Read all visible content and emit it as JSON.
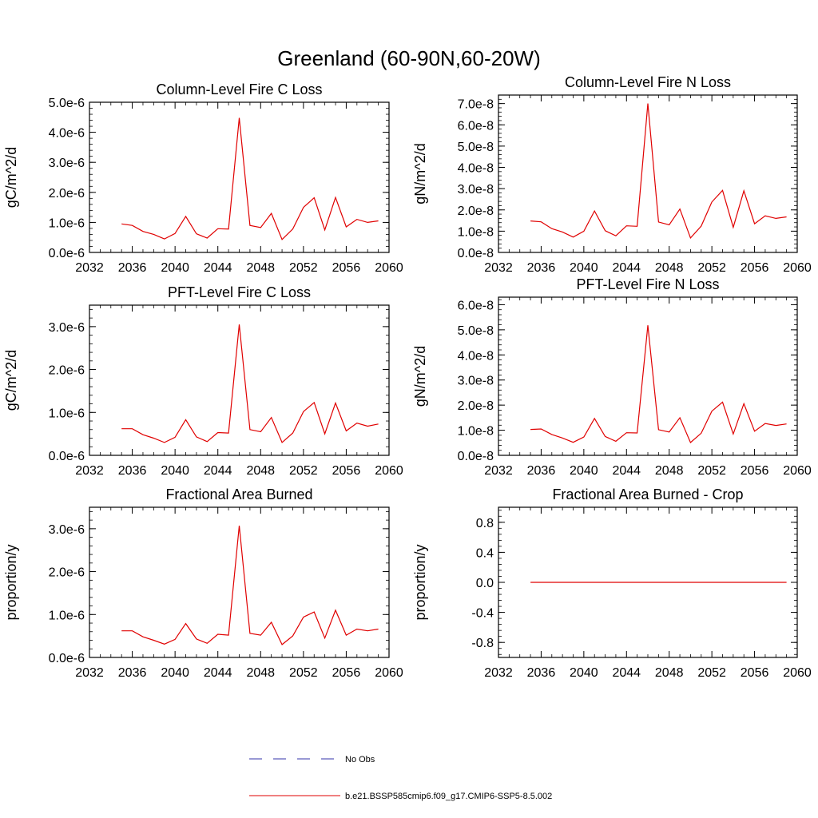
{
  "main_title": "Greenland (60-90N,60-20W)",
  "legend": {
    "entries": [
      {
        "label": "No Obs",
        "color": "#3333aa",
        "dash": true
      },
      {
        "label": "b.e21.BSSP585cmip6.f09_g17.CMIP6-SSP5-8.5.002",
        "color": "#e00000",
        "dash": false
      }
    ]
  },
  "chart_data": [
    {
      "type": "line",
      "title": "Column-Level Fire C Loss",
      "ylabel": "gC/m^2/d",
      "xlim": [
        2032,
        2060
      ],
      "ylim": [
        0,
        5e-06
      ],
      "x_ticks": [
        2032,
        2036,
        2040,
        2044,
        2048,
        2052,
        2056,
        2060
      ],
      "x_tick_labels": [
        "2032",
        "2036",
        "2040",
        "2044",
        "2048",
        "2052",
        "2056",
        "2060"
      ],
      "y_ticks": [
        0,
        1e-06,
        2e-06,
        3e-06,
        4e-06,
        5e-06
      ],
      "y_tick_labels": [
        "0.0e-6",
        "1.0e-6",
        "2.0e-6",
        "3.0e-6",
        "4.0e-6",
        "5.0e-6"
      ],
      "series": [
        {
          "name": "b.e21.BSSP585cmip6.f09_g17.CMIP6-SSP5-8.5.002",
          "color": "#e00000",
          "x": [
            2035,
            2036,
            2037,
            2038,
            2039,
            2040,
            2041,
            2042,
            2043,
            2044,
            2045,
            2046,
            2047,
            2048,
            2049,
            2050,
            2051,
            2052,
            2053,
            2054,
            2055,
            2056,
            2057,
            2058,
            2059
          ],
          "values": [
            9.5e-07,
            9e-07,
            7e-07,
            6e-07,
            4.5e-07,
            6.3e-07,
            1.2e-06,
            6.2e-07,
            4.8e-07,
            7.9e-07,
            7.8e-07,
            4.48e-06,
            9e-07,
            8.3e-07,
            1.3e-06,
            4.3e-07,
            7.8e-07,
            1.5e-06,
            1.82e-06,
            7.5e-07,
            1.83e-06,
            8.5e-07,
            1.1e-06,
            1e-06,
            1.05e-06
          ]
        }
      ]
    },
    {
      "type": "line",
      "title": "Column-Level Fire N Loss",
      "ylabel": "gN/m^2/d",
      "xlim": [
        2032,
        2060
      ],
      "ylim": [
        0,
        7.4e-08
      ],
      "x_ticks": [
        2032,
        2036,
        2040,
        2044,
        2048,
        2052,
        2056,
        2060
      ],
      "x_tick_labels": [
        "2032",
        "2036",
        "2040",
        "2044",
        "2048",
        "2052",
        "2056",
        "2060"
      ],
      "y_ticks": [
        0,
        1e-08,
        2e-08,
        3e-08,
        4e-08,
        5e-08,
        6e-08,
        7e-08
      ],
      "y_tick_labels": [
        "0.0e-8",
        "1.0e-8",
        "2.0e-8",
        "3.0e-8",
        "4.0e-8",
        "5.0e-8",
        "6.0e-8",
        "7.0e-8"
      ],
      "series": [
        {
          "name": "b.e21.BSSP585cmip6.f09_g17.CMIP6-SSP5-8.5.002",
          "color": "#e00000",
          "x": [
            2035,
            2036,
            2037,
            2038,
            2039,
            2040,
            2041,
            2042,
            2043,
            2044,
            2045,
            2046,
            2047,
            2048,
            2049,
            2050,
            2051,
            2052,
            2053,
            2054,
            2055,
            2056,
            2057,
            2058,
            2059
          ],
          "values": [
            1.48e-08,
            1.44e-08,
            1.12e-08,
            9.6e-09,
            7.2e-09,
            1e-08,
            1.95e-08,
            1.02e-08,
            7.8e-09,
            1.25e-08,
            1.23e-08,
            7e-08,
            1.43e-08,
            1.3e-08,
            2.04e-08,
            6.8e-09,
            1.24e-08,
            2.37e-08,
            2.92e-08,
            1.18e-08,
            2.9e-08,
            1.35e-08,
            1.72e-08,
            1.6e-08,
            1.67e-08
          ]
        }
      ]
    },
    {
      "type": "line",
      "title": "PFT-Level Fire C Loss",
      "ylabel": "gC/m^2/d",
      "xlim": [
        2032,
        2060
      ],
      "ylim": [
        0,
        3.5e-06
      ],
      "x_ticks": [
        2032,
        2036,
        2040,
        2044,
        2048,
        2052,
        2056,
        2060
      ],
      "x_tick_labels": [
        "2032",
        "2036",
        "2040",
        "2044",
        "2048",
        "2052",
        "2056",
        "2060"
      ],
      "y_ticks": [
        0,
        1e-06,
        2e-06,
        3e-06
      ],
      "y_tick_labels": [
        "0.0e-6",
        "1.0e-6",
        "2.0e-6",
        "3.0e-6"
      ],
      "series": [
        {
          "name": "b.e21.BSSP585cmip6.f09_g17.CMIP6-SSP5-8.5.002",
          "color": "#e00000",
          "x": [
            2035,
            2036,
            2037,
            2038,
            2039,
            2040,
            2041,
            2042,
            2043,
            2044,
            2045,
            2046,
            2047,
            2048,
            2049,
            2050,
            2051,
            2052,
            2053,
            2054,
            2055,
            2056,
            2057,
            2058,
            2059
          ],
          "values": [
            6.2e-07,
            6.2e-07,
            4.8e-07,
            4e-07,
            3e-07,
            4.2e-07,
            8.3e-07,
            4.3e-07,
            3.2e-07,
            5.3e-07,
            5.2e-07,
            3.05e-06,
            6e-07,
            5.5e-07,
            8.8e-07,
            3e-07,
            5.2e-07,
            1.02e-06,
            1.23e-06,
            5e-07,
            1.22e-06,
            5.7e-07,
            7.5e-07,
            6.8e-07,
            7.3e-07
          ]
        }
      ]
    },
    {
      "type": "line",
      "title": "PFT-Level Fire N Loss",
      "ylabel": "gN/m^2/d",
      "xlim": [
        2032,
        2060
      ],
      "ylim": [
        0,
        6.3e-08
      ],
      "x_ticks": [
        2032,
        2036,
        2040,
        2044,
        2048,
        2052,
        2056,
        2060
      ],
      "x_tick_labels": [
        "2032",
        "2036",
        "2040",
        "2044",
        "2048",
        "2052",
        "2056",
        "2060"
      ],
      "y_ticks": [
        0,
        1e-08,
        2e-08,
        3e-08,
        4e-08,
        5e-08,
        6e-08
      ],
      "y_tick_labels": [
        "0.0e-8",
        "1.0e-8",
        "2.0e-8",
        "3.0e-8",
        "4.0e-8",
        "5.0e-8",
        "6.0e-8"
      ],
      "series": [
        {
          "name": "b.e21.BSSP585cmip6.f09_g17.CMIP6-SSP5-8.5.002",
          "color": "#e00000",
          "x": [
            2035,
            2036,
            2037,
            2038,
            2039,
            2040,
            2041,
            2042,
            2043,
            2044,
            2045,
            2046,
            2047,
            2048,
            2049,
            2050,
            2051,
            2052,
            2053,
            2054,
            2055,
            2056,
            2057,
            2058,
            2059
          ],
          "values": [
            1.03e-08,
            1.05e-08,
            8.3e-09,
            6.9e-09,
            5.2e-09,
            7.3e-09,
            1.47e-08,
            7.5e-09,
            5.6e-09,
            9e-09,
            8.9e-09,
            5.18e-08,
            1.02e-08,
            9.3e-09,
            1.5e-08,
            5.1e-09,
            8.8e-09,
            1.76e-08,
            2.12e-08,
            8.5e-09,
            2.06e-08,
            9.6e-09,
            1.27e-08,
            1.19e-08,
            1.25e-08
          ]
        }
      ]
    },
    {
      "type": "line",
      "title": "Fractional Area Burned",
      "ylabel": "proportion/y",
      "xlim": [
        2032,
        2060
      ],
      "ylim": [
        0,
        3.5e-06
      ],
      "x_ticks": [
        2032,
        2036,
        2040,
        2044,
        2048,
        2052,
        2056,
        2060
      ],
      "x_tick_labels": [
        "2032",
        "2036",
        "2040",
        "2044",
        "2048",
        "2052",
        "2056",
        "2060"
      ],
      "y_ticks": [
        0,
        1e-06,
        2e-06,
        3e-06
      ],
      "y_tick_labels": [
        "0.0e-6",
        "1.0e-6",
        "2.0e-6",
        "3.0e-6"
      ],
      "series": [
        {
          "name": "b.e21.BSSP585cmip6.f09_g17.CMIP6-SSP5-8.5.002",
          "color": "#e00000",
          "x": [
            2035,
            2036,
            2037,
            2038,
            2039,
            2040,
            2041,
            2042,
            2043,
            2044,
            2045,
            2046,
            2047,
            2048,
            2049,
            2050,
            2051,
            2052,
            2053,
            2054,
            2055,
            2056,
            2057,
            2058,
            2059
          ],
          "values": [
            6.2e-07,
            6.2e-07,
            4.8e-07,
            4e-07,
            3.1e-07,
            4.2e-07,
            7.9e-07,
            4.3e-07,
            3.3e-07,
            5.4e-07,
            5.2e-07,
            3.07e-06,
            5.6e-07,
            5.2e-07,
            8.2e-07,
            3e-07,
            5e-07,
            9.4e-07,
            1.06e-06,
            4.5e-07,
            1.1e-06,
            5.2e-07,
            6.6e-07,
            6.2e-07,
            6.6e-07
          ]
        }
      ]
    },
    {
      "type": "line",
      "title": "Fractional Area Burned - Crop",
      "ylabel": "proportion/y",
      "xlim": [
        2032,
        2060
      ],
      "ylim": [
        -1.0,
        1.0
      ],
      "x_ticks": [
        2032,
        2036,
        2040,
        2044,
        2048,
        2052,
        2056,
        2060
      ],
      "x_tick_labels": [
        "2032",
        "2036",
        "2040",
        "2044",
        "2048",
        "2052",
        "2056",
        "2060"
      ],
      "y_ticks": [
        -0.8,
        -0.4,
        0,
        0.4,
        0.8
      ],
      "y_tick_labels": [
        "-0.8",
        "-0.4",
        "0.0",
        "0.4",
        "0.8"
      ],
      "series": [
        {
          "name": "b.e21.BSSP585cmip6.f09_g17.CMIP6-SSP5-8.5.002",
          "color": "#e00000",
          "x": [
            2035,
            2036,
            2037,
            2038,
            2039,
            2040,
            2041,
            2042,
            2043,
            2044,
            2045,
            2046,
            2047,
            2048,
            2049,
            2050,
            2051,
            2052,
            2053,
            2054,
            2055,
            2056,
            2057,
            2058,
            2059
          ],
          "values": [
            0,
            0,
            0,
            0,
            0,
            0,
            0,
            0,
            0,
            0,
            0,
            0,
            0,
            0,
            0,
            0,
            0,
            0,
            0,
            0,
            0,
            0,
            0,
            0,
            0
          ]
        }
      ]
    }
  ]
}
